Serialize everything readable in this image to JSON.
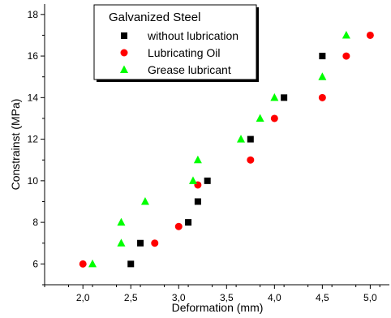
{
  "chart_data": {
    "type": "scatter",
    "title": "",
    "xlabel": "Deformation (mm)",
    "ylabel": "Constrainst (MPa)",
    "xlim": [
      1.6,
      5.2
    ],
    "ylim": [
      5,
      18.5
    ],
    "x_ticks": [
      2.0,
      2.5,
      3.0,
      3.5,
      4.0,
      4.5,
      5.0
    ],
    "x_tick_labels": [
      "2,0",
      "2,5",
      "3,0",
      "3,5",
      "4,0",
      "4,5",
      "5,0"
    ],
    "y_ticks": [
      6,
      8,
      10,
      12,
      14,
      16,
      18
    ],
    "y_tick_labels": [
      "6",
      "8",
      "10",
      "12",
      "14",
      "16",
      "18"
    ],
    "grid": false,
    "legend": {
      "title": "Galvanized Steel",
      "placement": "top-left"
    },
    "series": [
      {
        "name": "without lubrication",
        "marker": "square",
        "color": "#000000",
        "points": [
          [
            2.5,
            6
          ],
          [
            2.6,
            7
          ],
          [
            3.1,
            8
          ],
          [
            3.2,
            9
          ],
          [
            3.3,
            10
          ],
          [
            3.75,
            12
          ],
          [
            4.1,
            14
          ],
          [
            4.5,
            16
          ]
        ]
      },
      {
        "name": "Lubricating Oil",
        "marker": "circle",
        "color": "#ff0000",
        "points": [
          [
            2.0,
            6
          ],
          [
            2.75,
            7
          ],
          [
            3.0,
            7.8
          ],
          [
            3.2,
            9.8
          ],
          [
            3.75,
            11
          ],
          [
            4.0,
            13
          ],
          [
            4.5,
            14
          ],
          [
            4.75,
            16
          ],
          [
            5.0,
            17
          ]
        ]
      },
      {
        "name": "Grease lubricant",
        "marker": "triangle",
        "color": "#00ff00",
        "points": [
          [
            2.1,
            6
          ],
          [
            2.4,
            7
          ],
          [
            2.4,
            8
          ],
          [
            2.65,
            9
          ],
          [
            3.15,
            10
          ],
          [
            3.2,
            11
          ],
          [
            3.65,
            12
          ],
          [
            3.85,
            13
          ],
          [
            4.0,
            14
          ],
          [
            4.5,
            15
          ],
          [
            4.75,
            17
          ]
        ]
      }
    ]
  }
}
